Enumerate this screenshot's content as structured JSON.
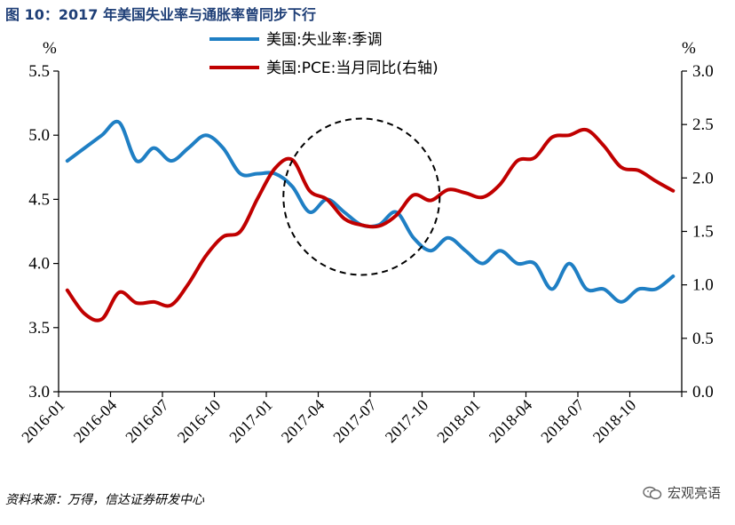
{
  "header": {
    "title": "图 10：2017 年美国失业率与通胀率曾同步下行"
  },
  "footer": {
    "source": "资料来源：万得，信达证券研发中心",
    "watermark": "宏观亮语"
  },
  "colors": {
    "unemployment": "#1f7fc4",
    "pce": "#c00000",
    "circle": "#000000",
    "title": "#1f3f77"
  },
  "chart_data": {
    "type": "line",
    "left_axis": {
      "unit": "%",
      "ylim": [
        3.0,
        5.5
      ],
      "ticks": [
        "5.5",
        "5.0",
        "4.5",
        "4.0",
        "3.5",
        "3.0"
      ],
      "tick_values": [
        5.5,
        5.0,
        4.5,
        4.0,
        3.5,
        3.0
      ]
    },
    "right_axis": {
      "unit": "%",
      "ylim": [
        0.0,
        3.0
      ],
      "ticks": [
        "3.0",
        "2.5",
        "2.0",
        "1.5",
        "1.0",
        "0.5",
        "0.0"
      ],
      "tick_values": [
        3.0,
        2.5,
        2.0,
        1.5,
        1.0,
        0.5,
        0.0
      ]
    },
    "x_ticks": [
      "2016-01",
      "2016-04",
      "2016-07",
      "2016-10",
      "2017-01",
      "2017-04",
      "2017-07",
      "2017-10",
      "2018-01",
      "2018-04",
      "2018-07",
      "2018-10"
    ],
    "x_months": [
      "2016-01",
      "2016-02",
      "2016-03",
      "2016-04",
      "2016-05",
      "2016-06",
      "2016-07",
      "2016-08",
      "2016-09",
      "2016-10",
      "2016-11",
      "2016-12",
      "2017-01",
      "2017-02",
      "2017-03",
      "2017-04",
      "2017-05",
      "2017-06",
      "2017-07",
      "2017-08",
      "2017-09",
      "2017-10",
      "2017-11",
      "2017-12",
      "2018-01",
      "2018-02",
      "2018-03",
      "2018-04",
      "2018-05",
      "2018-06",
      "2018-07",
      "2018-08",
      "2018-09",
      "2018-10",
      "2018-11",
      "2018-12"
    ],
    "series": [
      {
        "name": "美国:失业率:季调",
        "axis": "left",
        "values": [
          4.8,
          4.9,
          5.0,
          5.1,
          4.8,
          4.9,
          4.8,
          4.9,
          5.0,
          4.9,
          4.7,
          4.7,
          4.7,
          4.6,
          4.4,
          4.5,
          4.4,
          4.3,
          4.3,
          4.4,
          4.2,
          4.1,
          4.2,
          4.1,
          4.0,
          4.1,
          4.0,
          4.0,
          3.8,
          4.0,
          3.8,
          3.8,
          3.7,
          3.8,
          3.8,
          3.9
        ]
      },
      {
        "name": "美国:PCE:当月同比(右轴)",
        "axis": "right",
        "values": [
          0.95,
          0.73,
          0.68,
          0.93,
          0.83,
          0.84,
          0.81,
          1.01,
          1.27,
          1.45,
          1.5,
          1.81,
          2.09,
          2.17,
          1.88,
          1.8,
          1.62,
          1.56,
          1.55,
          1.65,
          1.84,
          1.79,
          1.89,
          1.86,
          1.82,
          1.94,
          2.16,
          2.19,
          2.38,
          2.4,
          2.45,
          2.3,
          2.1,
          2.07,
          1.97,
          1.88
        ]
      }
    ],
    "annotation": {
      "type": "dashed-circle",
      "x_center_month": "2017-06",
      "y_center_left": 4.52
    }
  }
}
